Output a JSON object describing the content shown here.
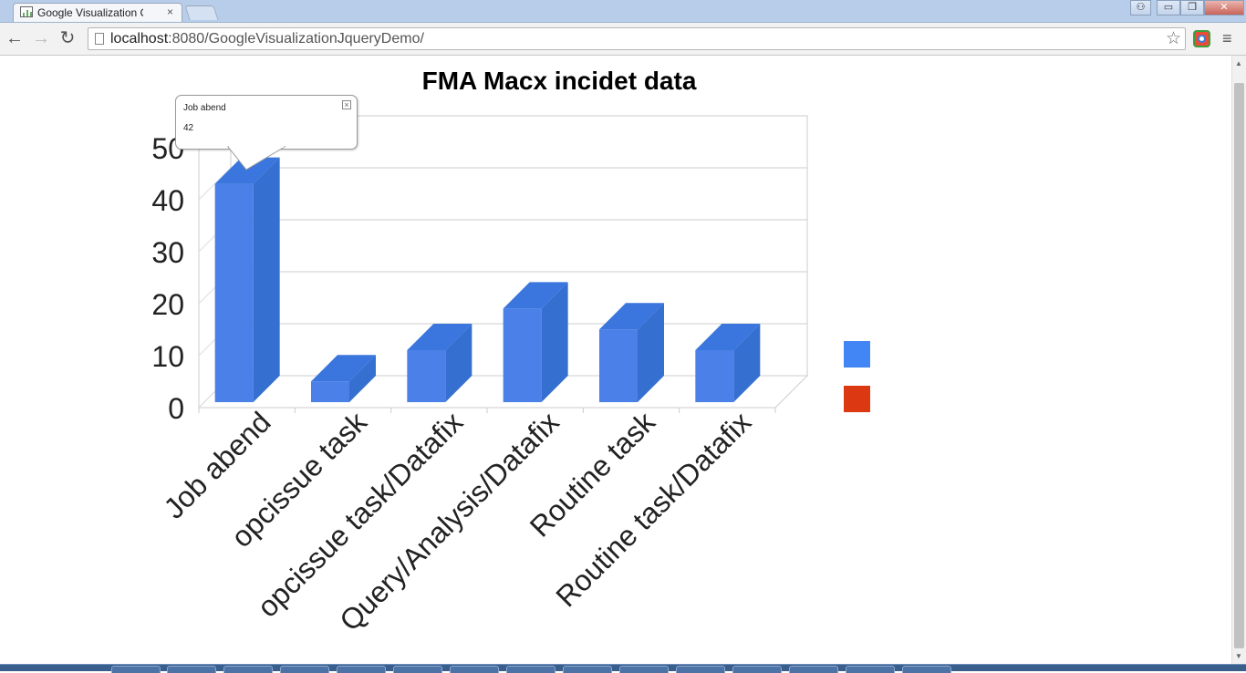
{
  "browser": {
    "tab_title": "Google Visualization Char",
    "tab_close": "×",
    "url_host": "localhost",
    "url_rest": ":8080/GoogleVisualizationJqueryDemo/",
    "back_glyph": "←",
    "forward_glyph": "→",
    "reload_glyph": "↻",
    "star_glyph": "☆",
    "menu_glyph": "≡",
    "win_user": "⚇",
    "win_min": "▭",
    "win_max": "❐",
    "win_close": "✕",
    "icons": [
      "back-arrow-icon",
      "forward-arrow-icon",
      "reload-icon",
      "page-icon",
      "star-icon",
      "chrome-extension-icon",
      "menu-icon"
    ]
  },
  "tooltip": {
    "label": "Job abend",
    "value": "42",
    "close": "×"
  },
  "colors": {
    "bar_front": "#4a80e8",
    "bar_side": "#3570d0",
    "bar_top": "#3a76de",
    "legend_1": "#4285f4",
    "legend_2": "#dc3912"
  },
  "chart_data": {
    "type": "bar",
    "title": "FMA Macx incidet data",
    "categories": [
      "Job abend",
      "opcissue task",
      "opcissue task/Datafix",
      "Query/Analysis/Datafix",
      "Routine task",
      "Routine task/Datafix"
    ],
    "values": [
      42,
      4,
      10,
      18,
      14,
      10
    ],
    "ylim": [
      0,
      50
    ],
    "yticks": [
      0,
      10,
      20,
      30,
      40,
      50
    ],
    "ytick_labels": [
      "0",
      "10",
      "20",
      "30",
      "40",
      "50"
    ],
    "xlabel": "",
    "ylabel": "",
    "grid": true,
    "legend": "right",
    "legend_entries": [
      {
        "name": "",
        "color": "#4285f4"
      },
      {
        "name": "",
        "color": "#dc3912"
      }
    ],
    "style": "3d"
  }
}
